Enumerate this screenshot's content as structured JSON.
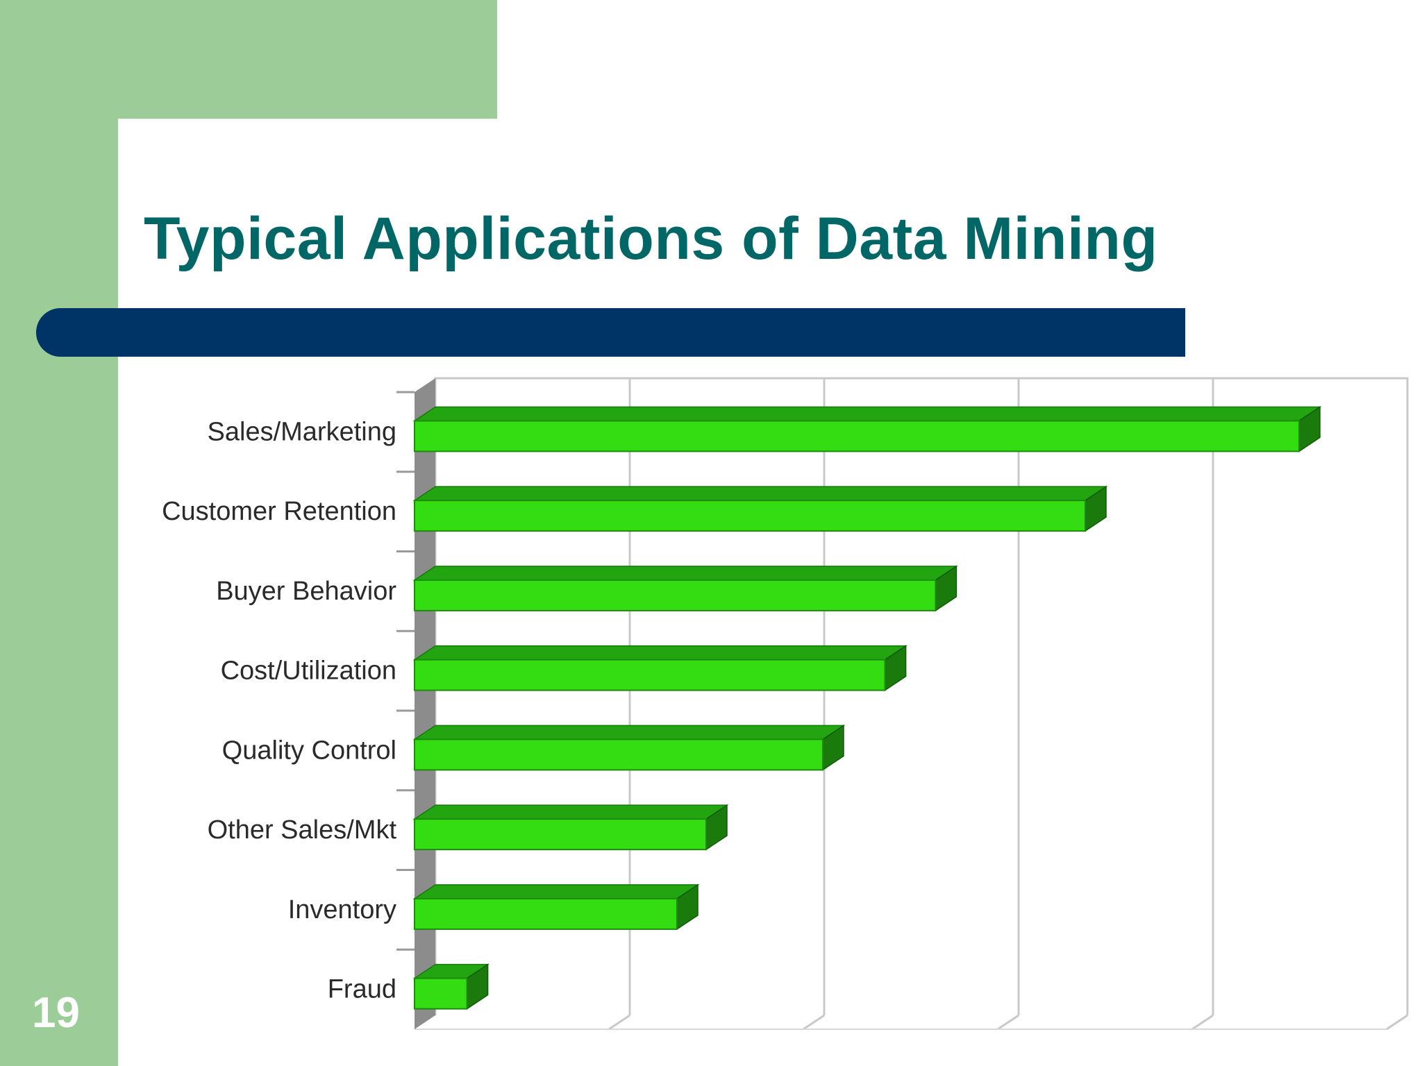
{
  "slide": {
    "title": "Typical Applications of Data Mining",
    "number": "19"
  },
  "colors": {
    "sidebar_green": "#9ccd98",
    "title_teal": "#006666",
    "title_bar_navy": "#003366",
    "bar_front": "#33dd11",
    "bar_top": "#22a511",
    "bar_side": "#1a7a0c"
  },
  "chart_data": {
    "type": "bar",
    "orientation": "horizontal",
    "style": "3d",
    "title": "",
    "xlabel": "",
    "ylabel": "",
    "categories": [
      "Sales/Marketing",
      "Customer Retention",
      "Buyer Behavior",
      "Cost/Utilization",
      "Quality Control",
      "Other Sales/Mkt",
      "Inventory",
      "Fraud"
    ],
    "values": [
      4.55,
      3.45,
      2.68,
      2.42,
      2.1,
      1.5,
      1.35,
      0.27
    ],
    "xlim": [
      0,
      5
    ],
    "grid": true,
    "legend": "none"
  }
}
